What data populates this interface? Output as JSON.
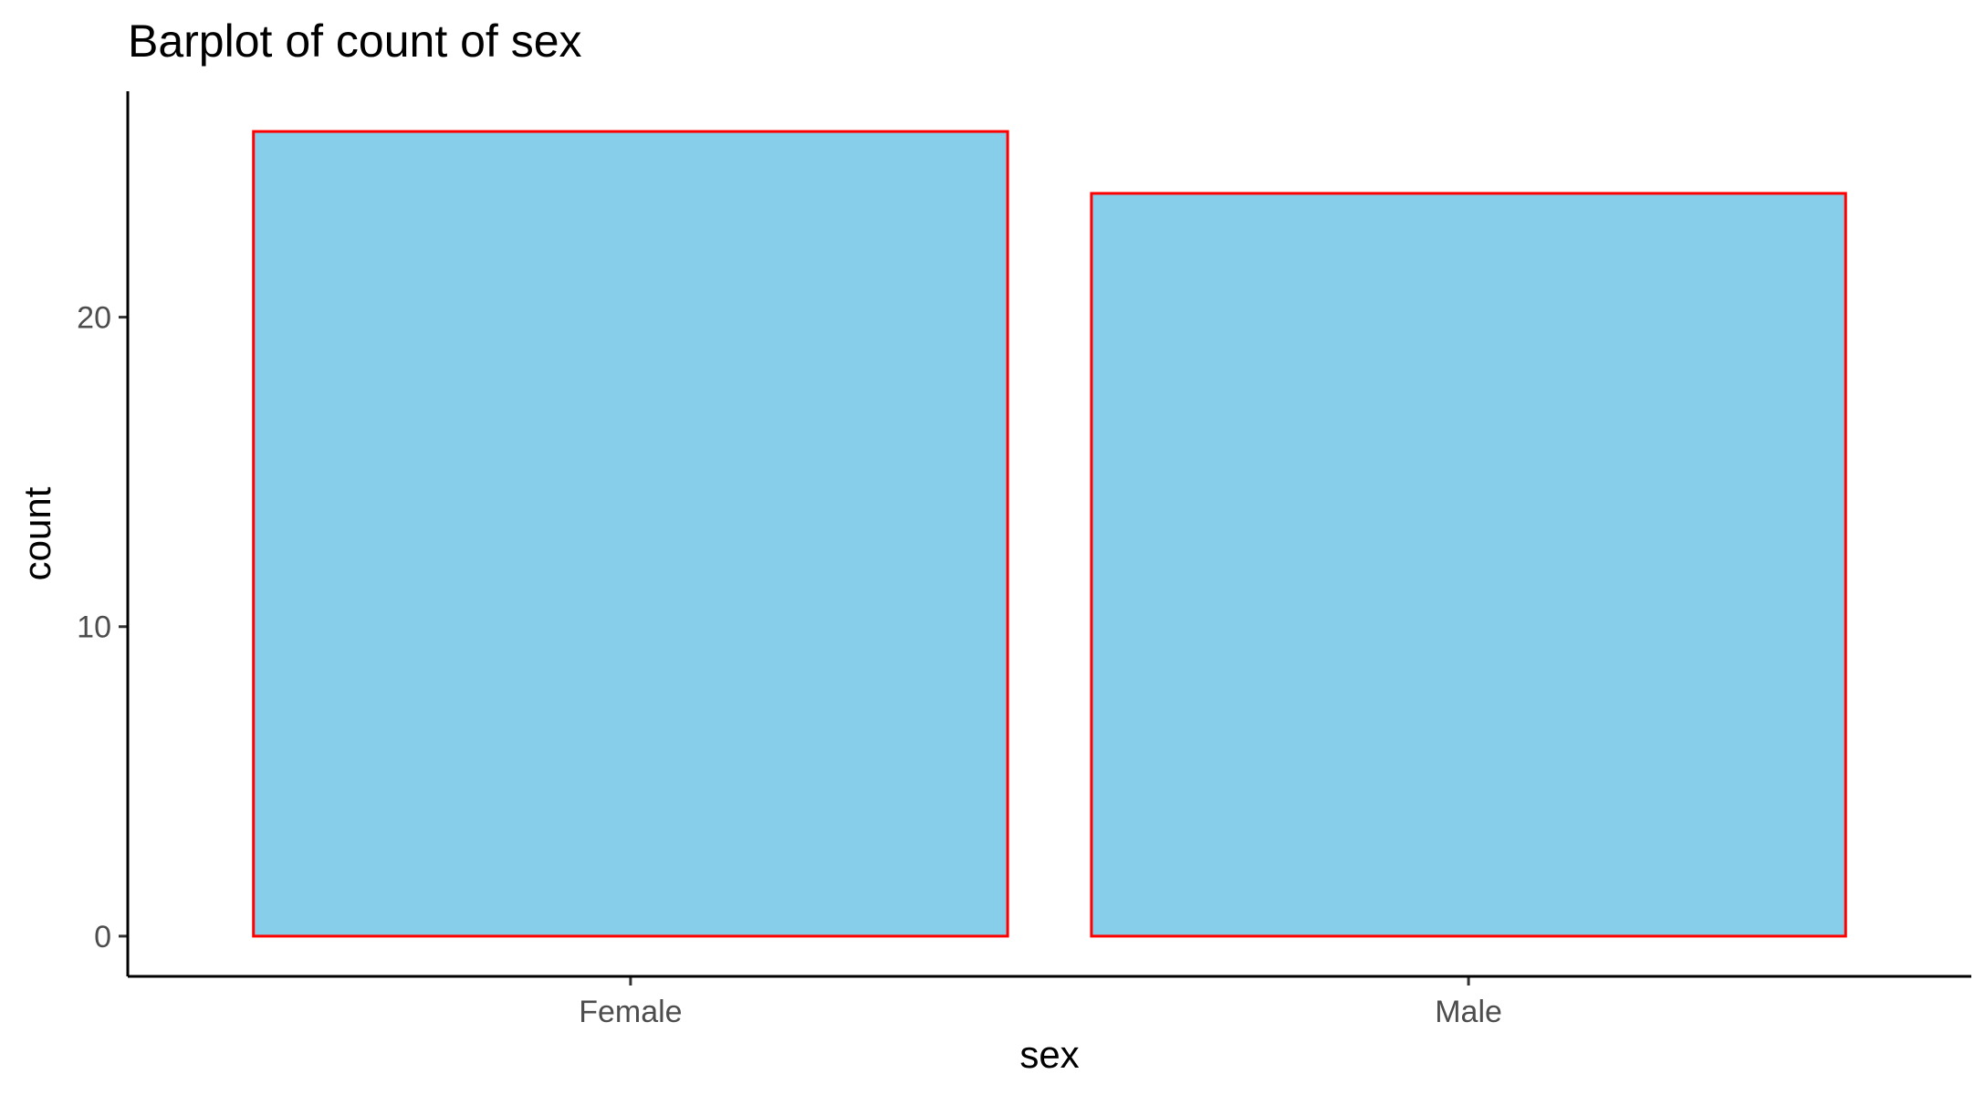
{
  "chart_data": {
    "type": "bar",
    "title": "Barplot of count of sex",
    "xlabel": "sex",
    "ylabel": "count",
    "categories": [
      "Female",
      "Male"
    ],
    "values": [
      26,
      24
    ],
    "ylim": [
      -1.3,
      27.3
    ],
    "yticks": [
      0,
      10,
      20
    ],
    "grid": false,
    "legend": "none",
    "bar_fill_color": "#87CEEB",
    "bar_border_color": "#FF0000"
  }
}
